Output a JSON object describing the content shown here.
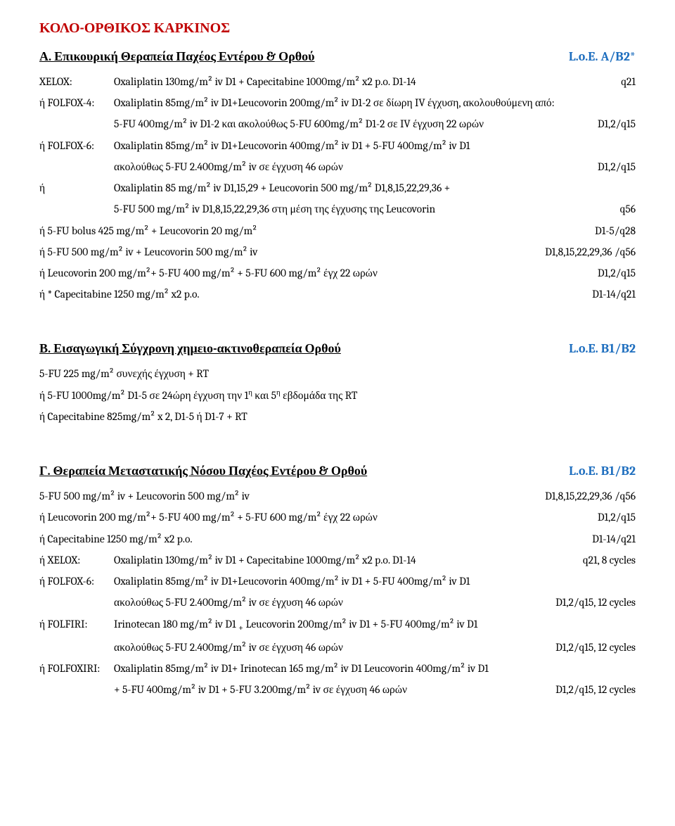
{
  "title": "ΚΟΛΟ-ΟΡΘΙΚΟΣ ΚΑΡΚΙΝΟΣ",
  "A": {
    "heading": "Α. Επικουρική Θεραπεία Παχέος Εντέρου & Ορθού",
    "loe": "L.o.E. A/B2*",
    "l1_label": "XELOX:",
    "l1_text": "Oxaliplatin 130mg/m² iv D1 + Capecitabine 1000mg/m² x2 p.o. D1-14",
    "l1_r": "q21",
    "l2_label": "ή FOLFOX-4:",
    "l2_text": "Oxaliplatin 85mg/m² iv D1+Leucovorin 200mg/m² iv D1-2 σε δίωρη IV έγχυση, ακολουθούμενη από:",
    "l3_text": "5-FU 400mg/m² iv D1-2 και ακολούθως 5-FU 600mg/m² D1-2 σε IV έγχυση 22 ωρών",
    "l3_r": "D1,2/q15",
    "l4_label": "ή FOLFOX-6:",
    "l4_text": "Oxaliplatin 85mg/m² iv D1+Leucovorin 400mg/m² iv D1 + 5-FU 400mg/m² iv D1",
    "l5_text": "ακολούθως 5-FU 2.400mg/m² iv σε έγχυση 46 ωρών",
    "l5_r": "D1,2/q15",
    "l6_label": "ή",
    "l6_text": "Oxaliplatin 85 mg/m² iv D1,15,29 + Leucovorin 500 mg/m² D1,8,15,22,29,36 +",
    "l7_text": "5-FU 500 mg/m² iv D1,8,15,22,29,36 στη μέση της έγχυσης της Leucovorin",
    "l7_r": "q56",
    "l8_text": "ή  5-FU bolus 425 mg/m² + Leucovorin 20 mg/m²",
    "l8_r": "D1-5/q28",
    "l9_text": "ή  5-FU 500 mg/m² iv + Leucovorin 500 mg/m² iv",
    "l9_r": "D1,8,15,22,29,36 /q56",
    "l10_text": "ή Leucovorin 200 mg/m²+ 5-FU 400 mg/m² + 5-FU 600 mg/m² έγχ 22 ωρών",
    "l10_r": "D1,2/q15",
    "l11_text": "ή * Capecitabine 1250 mg/m² x2 p.o.",
    "l11_r": "D1-14/q21"
  },
  "B": {
    "heading": "Β. Εισαγωγική Σύγχρονη χημειο-ακτινοθεραπεία Ορθού",
    "loe": "L.o.E. B1/B2",
    "l1_text": "5-FU 225 mg/m²  συνεχής έγχυση + RT",
    "l2_text_a": "ή  5-FU 1000mg/m² D1-5 σε 24ώρη έγχυση την 1",
    "l2_text_b": " και 5",
    "l2_text_c": " εβδομάδα της RT",
    "sup_eta": "η",
    "l3_text": "ή  Capecitabine 825mg/m² x 2, D1-5 ή D1-7 + RT"
  },
  "C": {
    "heading": "Γ. Θεραπεία Μεταστατικής Νόσου Παχέος Εντέρου & Ορθού",
    "loe": "L.o.E. B1/B2",
    "l1_text": "5-FU 500 mg/m² iv + Leucovorin 500 mg/m² iv",
    "l1_r": "D1,8,15,22,29,36 /q56",
    "l2_text": "ή Leucovorin 200 mg/m²+ 5-FU 400 mg/m² + 5-FU 600 mg/m² έγχ 22 ωρών",
    "l2_r": "D1,2/q15",
    "l3_text": "ή  Capecitabine 1250 mg/m² x2 p.o.",
    "l3_r": "D1-14/q21",
    "l4_label": "ή  XELOX:",
    "l4_text": "Oxaliplatin 130mg/m² iv D1 + Capecitabine 1000mg/m² x2 p.o. D1-14",
    "l4_r": "q21, 8 cycles",
    "l5_label": "ή FOLFOX-6:",
    "l5_text": "Oxaliplatin 85mg/m² iv D1+Leucovorin 400mg/m² iv D1 + 5-FU 400mg/m² iv D1",
    "l6_text": "ακολούθως 5-FU 2.400mg/m² iv σε έγχυση 46 ωρών",
    "l6_r": "D1,2/q15, 12 cycles",
    "l7_label": "ή FOLFIRI:",
    "l7_text_a": "Irinotecan 180 mg/m² iv D1 ",
    "l7_text_b": " Leucovorin 200mg/m² iv D1 + 5-FU 400mg/m² iv D1",
    "l7_plus": "+",
    "l8_text": "ακολούθως 5-FU 2.400mg/m² iv σε έγχυση 46 ωρών",
    "l8_r": "D1,2/q15, 12 cycles",
    "l9_label": "ή FOLFOXIRI:",
    "l9_text": "Oxaliplatin 85mg/m² iv D1+ Irinotecan 165 mg/m² iv D1 Leucovorin 400mg/m² iv D1",
    "l10_text": "+ 5-FU 400mg/m² iv D1 + 5-FU 3.200mg/m² iv σε έγχυση 46 ωρών",
    "l10_r": "D1,2/q15, 12 cycles"
  }
}
